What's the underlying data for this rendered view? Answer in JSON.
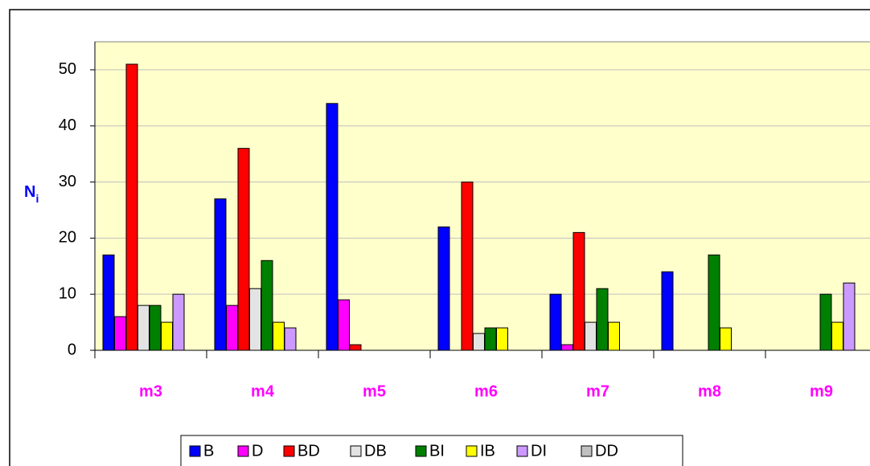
{
  "chart_data": {
    "type": "bar",
    "y_label": "N",
    "y_label_subscript": "i",
    "categories": [
      "m3",
      "m4",
      "m5",
      "m6",
      "m7",
      "m8",
      "m9"
    ],
    "series": [
      {
        "name": "B",
        "color": "#0000ff",
        "values": [
          17,
          27,
          44,
          22,
          10,
          14,
          0
        ]
      },
      {
        "name": "D",
        "color": "#ff00ff",
        "values": [
          6,
          8,
          9,
          0,
          1,
          0,
          0
        ]
      },
      {
        "name": "BD",
        "color": "#ff0000",
        "values": [
          51,
          36,
          1,
          30,
          21,
          0,
          0
        ]
      },
      {
        "name": "DB",
        "color": "#e3e3e3",
        "values": [
          8,
          11,
          0,
          3,
          5,
          0,
          0
        ]
      },
      {
        "name": "BI",
        "color": "#008000",
        "values": [
          8,
          16,
          0,
          4,
          11,
          17,
          10
        ]
      },
      {
        "name": "IB",
        "color": "#ffff00",
        "values": [
          5,
          5,
          0,
          4,
          5,
          4,
          5
        ]
      },
      {
        "name": "DI",
        "color": "#cc99ff",
        "values": [
          10,
          4,
          0,
          0,
          0,
          0,
          12
        ]
      },
      {
        "name": "DD",
        "color": "#c0c0c0",
        "values": [
          0,
          0,
          0,
          0,
          0,
          0,
          0
        ]
      }
    ],
    "ylim": [
      0,
      55
    ],
    "yticks": [
      0,
      10,
      20,
      30,
      40,
      50
    ],
    "grid": true
  }
}
